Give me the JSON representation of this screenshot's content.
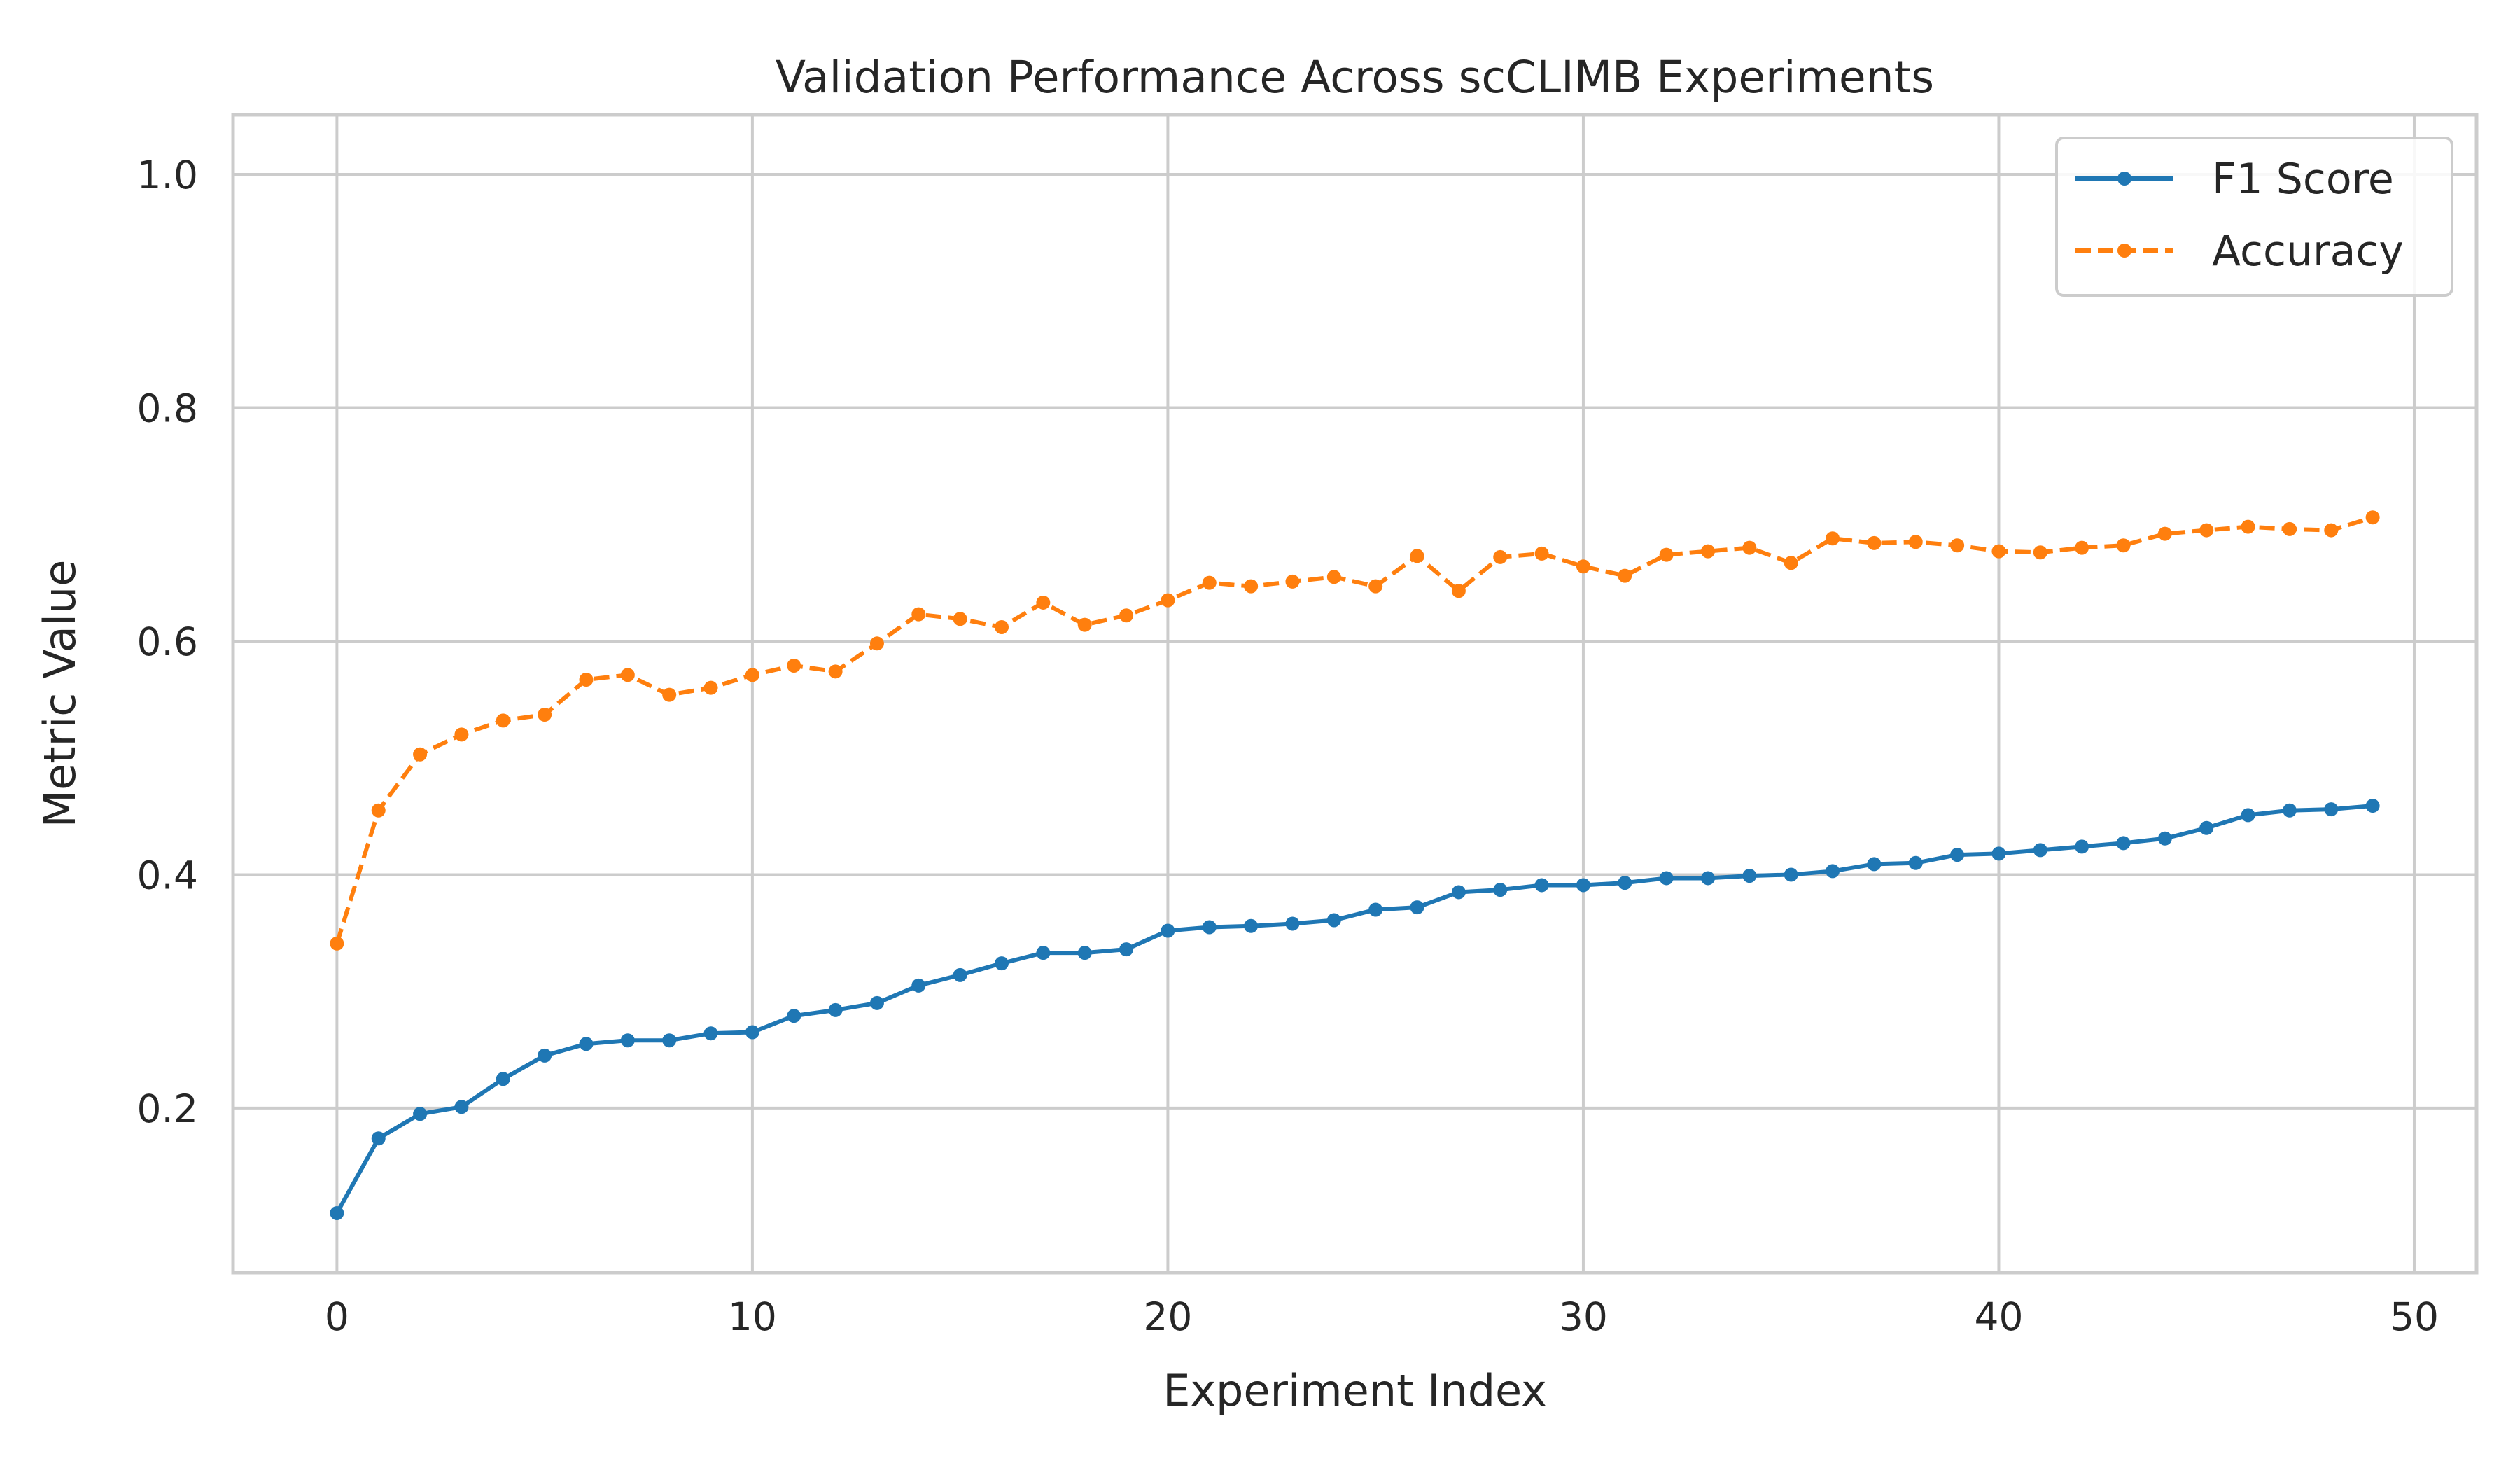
{
  "chart_data": {
    "type": "line",
    "title": "Validation Performance Across scCLIMB Experiments",
    "xlabel": "Experiment Index",
    "ylabel": "Metric Value",
    "xlim": [
      -2.5,
      51.5
    ],
    "ylim": [
      0.059,
      1.051
    ],
    "xticks": [
      0,
      10,
      20,
      30,
      40,
      50
    ],
    "yticks": [
      0.2,
      0.4,
      0.6,
      0.8,
      1.0
    ],
    "grid": true,
    "legend_position": "top-right",
    "x": [
      0,
      1,
      2,
      3,
      4,
      5,
      6,
      7,
      8,
      9,
      10,
      11,
      12,
      13,
      14,
      15,
      16,
      17,
      18,
      19,
      20,
      21,
      22,
      23,
      24,
      25,
      26,
      27,
      28,
      29,
      30,
      31,
      32,
      33,
      34,
      35,
      36,
      37,
      38,
      39,
      40,
      41,
      42,
      43,
      44,
      45,
      46,
      47,
      48,
      49
    ],
    "series": [
      {
        "name": "F1 Score",
        "color": "#1f77b4",
        "line_style": "solid",
        "values": [
          0.11,
          0.174,
          0.195,
          0.201,
          0.225,
          0.245,
          0.255,
          0.258,
          0.258,
          0.264,
          0.265,
          0.279,
          0.284,
          0.29,
          0.305,
          0.314,
          0.324,
          0.333,
          0.333,
          0.336,
          0.352,
          0.355,
          0.356,
          0.358,
          0.361,
          0.37,
          0.372,
          0.385,
          0.387,
          0.391,
          0.391,
          0.393,
          0.397,
          0.397,
          0.399,
          0.4,
          0.403,
          0.409,
          0.41,
          0.417,
          0.418,
          0.421,
          0.424,
          0.427,
          0.431,
          0.44,
          0.451,
          0.455,
          0.456,
          0.459
        ]
      },
      {
        "name": "Accuracy",
        "color": "#ff7f0e",
        "line_style": "dashed",
        "values": [
          0.341,
          0.455,
          0.503,
          0.52,
          0.532,
          0.537,
          0.567,
          0.571,
          0.554,
          0.56,
          0.571,
          0.579,
          0.574,
          0.598,
          0.623,
          0.619,
          0.612,
          0.633,
          0.614,
          0.622,
          0.635,
          0.65,
          0.647,
          0.651,
          0.655,
          0.647,
          0.673,
          0.643,
          0.672,
          0.675,
          0.664,
          0.656,
          0.674,
          0.677,
          0.68,
          0.667,
          0.688,
          0.684,
          0.685,
          0.682,
          0.677,
          0.676,
          0.68,
          0.682,
          0.692,
          0.695,
          0.698,
          0.696,
          0.695,
          0.706
        ]
      }
    ]
  }
}
